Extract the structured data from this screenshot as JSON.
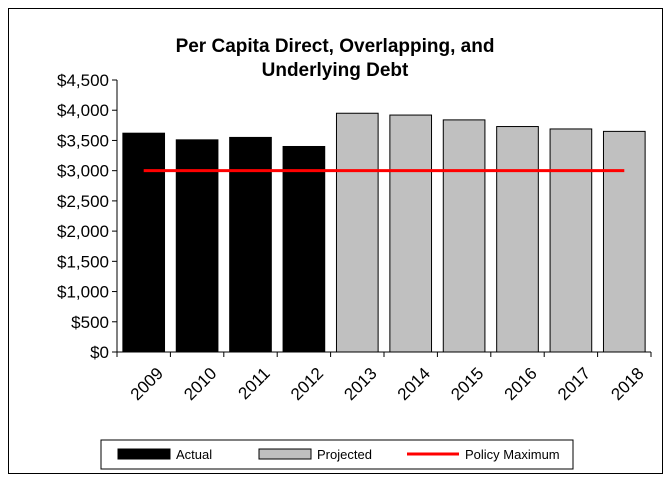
{
  "chart_data": {
    "type": "bar",
    "title": [
      "Per Capita Direct, Overlapping, and",
      "Underlying Debt"
    ],
    "xlabel": "",
    "ylabel": "",
    "categories": [
      "2009",
      "2010",
      "2011",
      "2012",
      "2013",
      "2014",
      "2015",
      "2016",
      "2017",
      "2018"
    ],
    "y_tick_labels": [
      "$0",
      "$500",
      "$1,000",
      "$1,500",
      "$2,000",
      "$2,500",
      "$3,000",
      "$3,500",
      "$4,000",
      "$4,500"
    ],
    "ylim": [
      0,
      4500
    ],
    "ytick_step": 500,
    "grid": false,
    "series": [
      {
        "name": "Actual",
        "color": "#000000",
        "values": [
          3620,
          3510,
          3550,
          3400,
          null,
          null,
          null,
          null,
          null,
          null
        ]
      },
      {
        "name": "Projected",
        "color": "#c0c0c0",
        "values": [
          null,
          null,
          null,
          null,
          3950,
          3920,
          3840,
          3730,
          3690,
          3650
        ]
      }
    ],
    "reference_line": {
      "name": "Policy Maximum",
      "value": 3000,
      "color": "#ff0000",
      "from_category": "2009",
      "to_category": "2018"
    },
    "legend_position": "bottom"
  }
}
